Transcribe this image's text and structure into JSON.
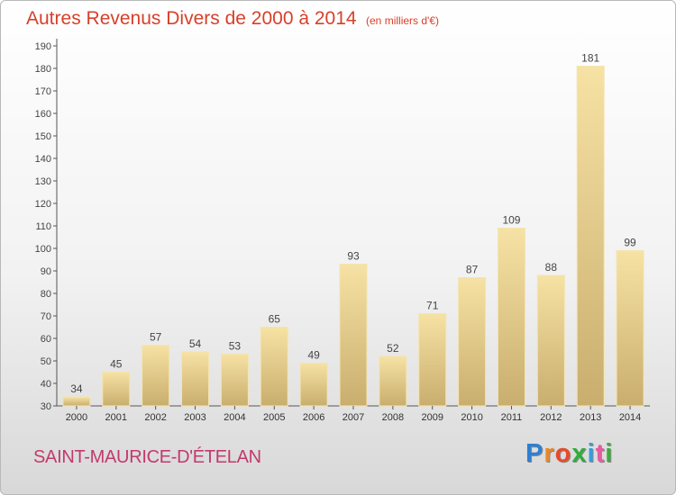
{
  "title": "Autres Revenus Divers de 2000 à 2014",
  "unit": "(en milliers d'€)",
  "commune": "SAINT-MAURICE-D'ÉTELAN",
  "logo": {
    "text": "Proxiti",
    "letter_colors": [
      "#2f7fd0",
      "#e8872a",
      "#e84a2a",
      "#2fae3c",
      "#2f9fe0",
      "#e85aa0",
      "#3cae3a"
    ]
  },
  "colors": {
    "title": "#d8402a",
    "commune": "#c23a6b",
    "bar_light": "#f6e2a4",
    "bar_dark": "#c9ae6e"
  },
  "chart_data": {
    "type": "bar",
    "categories": [
      "2000",
      "2001",
      "2002",
      "2003",
      "2004",
      "2005",
      "2006",
      "2007",
      "2008",
      "2009",
      "2010",
      "2011",
      "2012",
      "2013",
      "2014"
    ],
    "values": [
      34,
      45,
      57,
      54,
      53,
      65,
      49,
      93,
      52,
      71,
      87,
      109,
      88,
      181,
      99
    ],
    "title": "Autres Revenus Divers de 2000 à 2014",
    "xlabel": "",
    "ylabel": "",
    "ylim": [
      30,
      190
    ],
    "yticks": [
      30,
      40,
      50,
      60,
      70,
      80,
      90,
      100,
      110,
      120,
      130,
      140,
      150,
      160,
      170,
      180,
      190
    ],
    "grid": false,
    "data_labels": true
  }
}
